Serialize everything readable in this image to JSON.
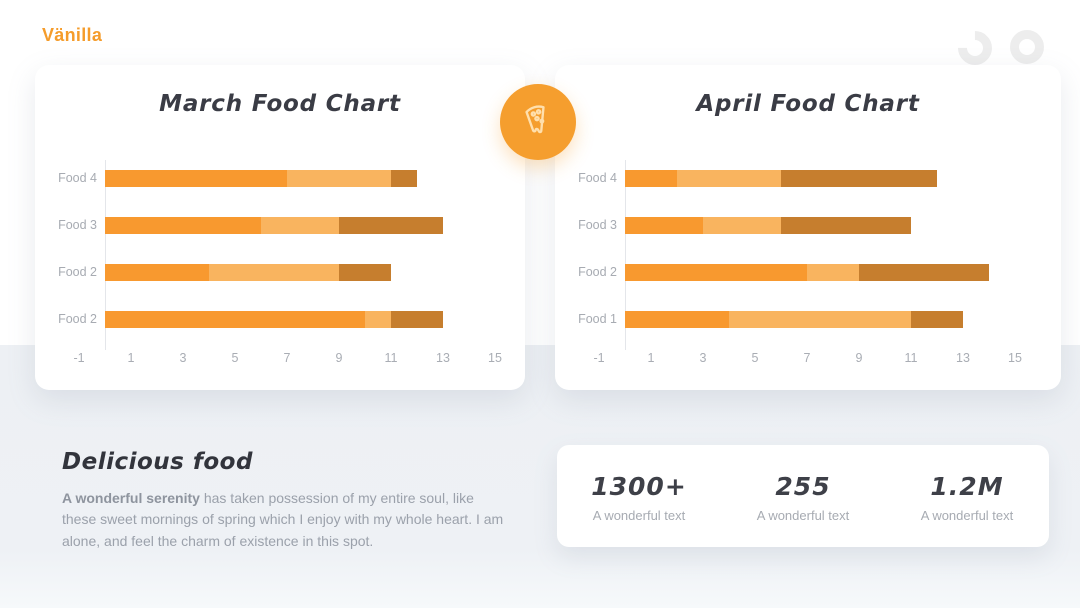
{
  "header": {
    "logo": "Vänilla"
  },
  "colors": {
    "accent_orange": "#F59E2E",
    "logo_orange": "#F59C2B",
    "series1": "#F8992F",
    "series2": "#F9B45F",
    "series3": "#C67E2E",
    "bottom_background": "#edf0f4",
    "card_background": "#ffffff",
    "muted_text": "#a7abb2",
    "dark_text": "#3a3c45"
  },
  "divider_icon": "pizza-icon",
  "chart_data": [
    {
      "type": "bar",
      "orientation": "horizontal",
      "stacked": true,
      "title": "March Food Chart",
      "categories": [
        "Food 4",
        "Food 3",
        "Food 2",
        "Food 2"
      ],
      "series": [
        {
          "name": "segment-1",
          "color": "#F8992F",
          "values": [
            7,
            6,
            4,
            10
          ]
        },
        {
          "name": "segment-2",
          "color": "#F9B45F",
          "values": [
            4,
            3,
            5,
            1
          ]
        },
        {
          "name": "segment-3",
          "color": "#C67E2E",
          "values": [
            1,
            4,
            2,
            2
          ]
        }
      ],
      "xticks": [
        -1,
        1,
        3,
        5,
        7,
        9,
        11,
        13,
        15
      ],
      "xlim": [
        -2,
        16
      ],
      "xlabel": "",
      "ylabel": "",
      "grid": false,
      "legend": false
    },
    {
      "type": "bar",
      "orientation": "horizontal",
      "stacked": true,
      "title": "April Food Chart",
      "categories": [
        "Food 4",
        "Food 3",
        "Food 2",
        "Food 1"
      ],
      "series": [
        {
          "name": "segment-1",
          "color": "#F8992F",
          "values": [
            2,
            3,
            7,
            4
          ]
        },
        {
          "name": "segment-2",
          "color": "#F9B45F",
          "values": [
            4,
            3,
            2,
            7
          ]
        },
        {
          "name": "segment-3",
          "color": "#C67E2E",
          "values": [
            6,
            5,
            5,
            2
          ]
        }
      ],
      "xticks": [
        -1,
        1,
        3,
        5,
        7,
        9,
        11,
        13,
        15
      ],
      "xlim": [
        -2,
        16
      ],
      "xlabel": "",
      "ylabel": "",
      "grid": false,
      "legend": false
    }
  ],
  "description": {
    "heading": "Delicious food",
    "lead": "A wonderful serenity",
    "body": " has taken possession of my entire soul, like these sweet mornings of spring which I enjoy with my whole heart. I am alone, and feel the charm of existence in this spot."
  },
  "stats": [
    {
      "value": "1300+",
      "label": "A wonderful text"
    },
    {
      "value": "255",
      "label": "A wonderful text"
    },
    {
      "value": "1.2M",
      "label": "A wonderful text"
    }
  ]
}
